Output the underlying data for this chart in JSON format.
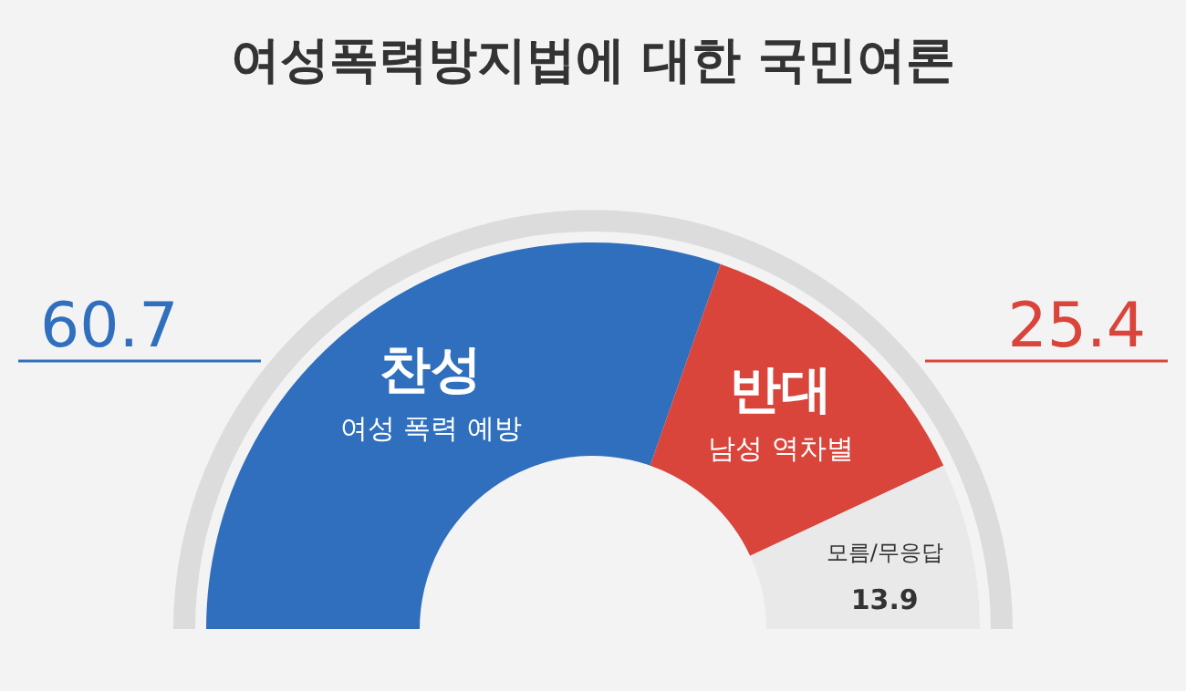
{
  "chart_data": {
    "type": "donut",
    "title": "여성폭력방지법에 대한 국민여론",
    "categories": [
      "찬성",
      "반대",
      "모름/무응답"
    ],
    "values": [
      60.7,
      25.4,
      13.9
    ],
    "colors": [
      "#2f6fbd",
      "#d9443b",
      "#e9e9e9"
    ],
    "data_labels": true,
    "annotations": [
      "여성 폭력 예방",
      "남성 역차별"
    ]
  }
}
